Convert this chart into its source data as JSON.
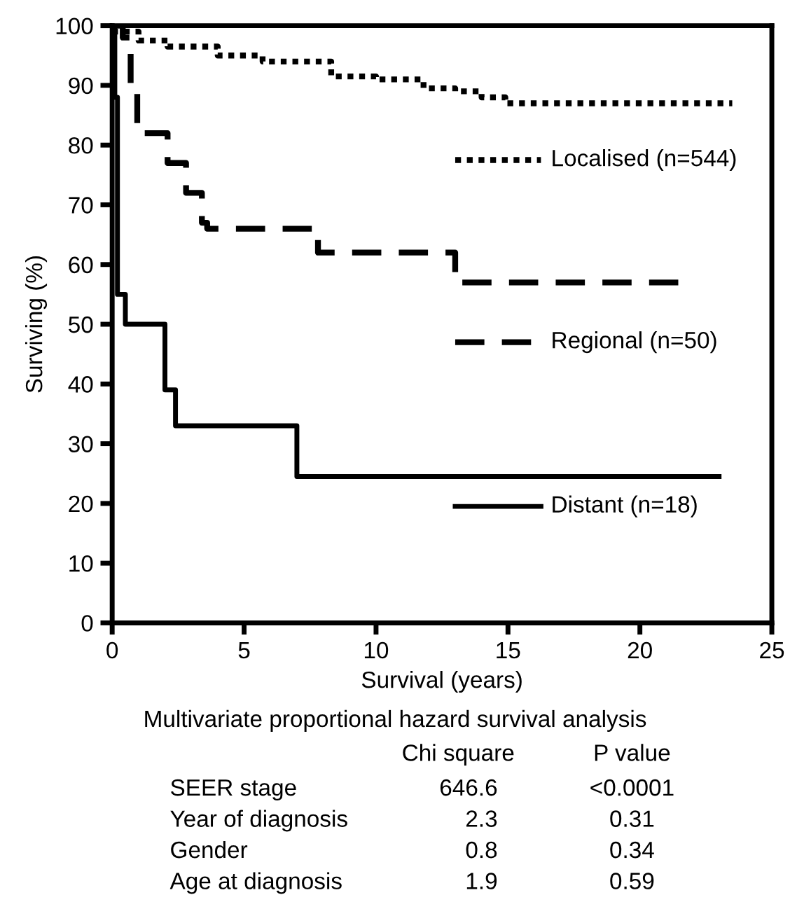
{
  "chart_data": {
    "type": "step",
    "xlabel": "Survival (years)",
    "ylabel": "Surviving (%)",
    "xlim": [
      0,
      25
    ],
    "xticks": [
      0,
      5,
      10,
      15,
      20,
      25
    ],
    "ylim": [
      0,
      100
    ],
    "yticks": [
      0,
      10,
      20,
      30,
      40,
      50,
      60,
      70,
      80,
      90,
      100
    ],
    "grid": false,
    "legend": "right",
    "series": [
      {
        "name": "Localised (n=544)",
        "color": "#000000",
        "line_style": "dotted",
        "x": [
          0,
          1,
          2.1,
          4,
          5.7,
          8.3,
          10,
          11.8,
          13,
          14,
          14.9,
          23.5
        ],
        "values": [
          99,
          97.5,
          96.5,
          95,
          94,
          91.5,
          91,
          89.5,
          89,
          88,
          87,
          87
        ]
      },
      {
        "name": "Regional (n=50)",
        "color": "#000000",
        "line_style": "dashed",
        "x": [
          0,
          0.4,
          0.7,
          0.95,
          2.1,
          2.8,
          3.4,
          3.6,
          7.8,
          13.0,
          21.6
        ],
        "values": [
          100,
          98,
          89,
          82,
          77,
          72,
          67,
          66,
          62,
          57,
          57
        ]
      },
      {
        "name": "Distant (n=18)",
        "color": "#000000",
        "line_style": "solid",
        "x": [
          0,
          0.1,
          0.2,
          0.5,
          2.0,
          2.4,
          7.0,
          23.0
        ],
        "values": [
          100,
          88,
          55,
          50,
          39,
          33,
          24.5,
          24.5
        ]
      }
    ],
    "annotations": [
      "Multivariate proportional hazard survival analysis",
      "Chi square",
      "P value",
      "SEER stage",
      "646.6",
      "<0.0001",
      "Year of diagnosis",
      "2.3",
      "0.31",
      "Gender",
      "0.8",
      "0.34",
      "Age at diagnosis",
      "1.9",
      "0.59"
    ]
  }
}
